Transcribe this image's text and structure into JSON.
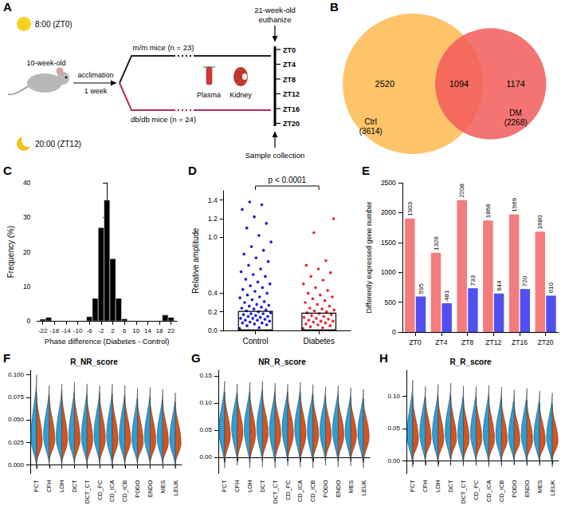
{
  "panel_letters": [
    "A",
    "B",
    "C",
    "D",
    "E",
    "F",
    "G",
    "H"
  ],
  "diagram": {
    "day": "8:00 (ZT0)",
    "night": "20:00 (ZT12)",
    "start_age": "10-week-old",
    "acclimation": "acclimation",
    "acclimation_time": "1 week",
    "groups": [
      "m/m mice (n = 23)",
      "db/db mice (n = 24)"
    ],
    "end_age": "21-week-old",
    "end_action": "euthanize",
    "samples": [
      "Plasma",
      "Kidney"
    ],
    "timepoints": [
      "ZT0",
      "ZT4",
      "ZT8",
      "ZT12",
      "ZT16",
      "ZT20"
    ],
    "collection": "Sample collection"
  },
  "venn": {
    "sets": [
      {
        "name": "Ctrl",
        "size": 3614,
        "size_label": "(3614)",
        "color": "#fdc46a"
      },
      {
        "name": "DM",
        "size": 2268,
        "size_label": "(2268)",
        "color": "#f25c5c"
      }
    ],
    "only": [
      2520,
      1174
    ],
    "both": 1094
  },
  "chart_data": [
    {
      "type": "histogram",
      "bins": [
        -23,
        -21,
        -19,
        -17,
        -15,
        -13,
        -11,
        -9,
        -7,
        -5,
        -3,
        -1,
        1,
        3,
        5,
        7,
        9,
        11,
        13,
        15,
        17,
        19,
        21,
        23
      ],
      "counts": [
        0.5,
        1,
        0,
        0,
        0,
        0,
        0,
        0,
        1.2,
        6.5,
        27,
        35,
        18,
        6.5,
        0.6,
        0,
        0,
        0,
        0,
        0,
        0,
        1.7,
        1
      ],
      "color": "#000000",
      "xlabel": "Phase difference (Diabetes - Control)",
      "ylabel": "Frequency (%)",
      "xlim": [
        -24,
        24
      ],
      "xticks": [
        -22,
        -18,
        -14,
        -10,
        -6,
        -2,
        2,
        6,
        10,
        14,
        18,
        22
      ],
      "ylim": [
        0,
        40
      ],
      "yticks": [
        0,
        10,
        20,
        30,
        40
      ]
    },
    {
      "type": "bar_dot",
      "categories": [
        "Control",
        "Diabetes"
      ],
      "colors": [
        "#1a1adb",
        "#e8282b"
      ],
      "values": [
        0.21,
        0.19
      ],
      "points": [
        [
          0.02,
          0.03,
          0.05,
          0.06,
          0.07,
          0.08,
          0.08,
          0.09,
          0.1,
          0.11,
          0.11,
          0.12,
          0.13,
          0.13,
          0.14,
          0.15,
          0.15,
          0.16,
          0.17,
          0.18,
          0.18,
          0.19,
          0.2,
          0.21,
          0.22,
          0.23,
          0.24,
          0.25,
          0.26,
          0.27,
          0.28,
          0.3,
          0.31,
          0.33,
          0.35,
          0.36,
          0.38,
          0.4,
          0.42,
          0.44,
          0.46,
          0.48,
          0.5,
          0.52,
          0.55,
          0.58,
          0.6,
          0.63,
          0.66,
          0.7,
          0.74,
          0.78,
          0.82,
          0.86,
          0.9,
          0.95,
          1.02,
          1.1,
          1.15,
          1.22,
          1.3,
          1.35,
          1.38
        ],
        [
          0.02,
          0.03,
          0.04,
          0.05,
          0.06,
          0.07,
          0.08,
          0.09,
          0.1,
          0.1,
          0.11,
          0.12,
          0.13,
          0.14,
          0.15,
          0.16,
          0.17,
          0.18,
          0.19,
          0.2,
          0.21,
          0.22,
          0.23,
          0.24,
          0.26,
          0.28,
          0.3,
          0.32,
          0.34,
          0.36,
          0.38,
          0.4,
          0.43,
          0.46,
          0.5,
          0.54,
          0.58,
          0.62,
          0.66,
          0.7,
          0.75,
          1.05,
          1.2
        ]
      ],
      "ylabel": "Relative amplitude",
      "annotation": "p < 0.0001",
      "ylim": [
        0,
        1.5
      ],
      "yticks": [
        {
          "value": 0,
          "label": "0.0"
        },
        0.2,
        0.4,
        {
          "value": 1,
          "label": "1.0"
        },
        1.2,
        1.4
      ]
    },
    {
      "type": "bar",
      "categories": [
        "ZT0",
        "ZT4",
        "ZT8",
        "ZT12",
        "ZT16",
        "ZT20"
      ],
      "series": [
        {
          "color": "#f47c7c",
          "values": [
            1903,
            1326,
            2208,
            1868,
            1969,
            1680
          ]
        },
        {
          "color": "#5050f0",
          "values": [
            595,
            481,
            733,
            644,
            720,
            610
          ]
        }
      ],
      "ylabel": "Differently expressed gene number",
      "ylim": [
        0,
        2500
      ],
      "yticks": [
        0,
        500,
        1000,
        1500,
        2000,
        2500
      ],
      "data_labels": true
    },
    {
      "type": "violin",
      "title": "R_NR_score",
      "categories": [
        "PCT",
        "CFH",
        "LOH",
        "DCT",
        "DCT_CT",
        "CD_PC",
        "CD_ICA",
        "CD_ICB",
        "PODO",
        "ENDO",
        "MES",
        "LEUK"
      ],
      "series": [
        {
          "color": "#2b9fd8",
          "min": [
            -0.005,
            -0.002,
            -0.003,
            -0.002,
            -0.003,
            -0.002,
            -0.004,
            -0.003,
            -0.002,
            -0.003,
            -0.002,
            -0.004
          ],
          "peak": [
            0.03,
            0.032,
            0.03,
            0.031,
            0.03,
            0.032,
            0.031,
            0.03,
            0.028,
            0.03,
            0.029,
            0.028
          ],
          "max": [
            0.1,
            0.088,
            0.09,
            0.092,
            0.09,
            0.088,
            0.09,
            0.088,
            0.085,
            0.086,
            0.084,
            0.08
          ]
        },
        {
          "color": "#d4541f",
          "min": [
            0,
            0.002,
            0,
            0.001,
            0,
            0.001,
            0,
            0.001,
            0.002,
            0,
            0.001,
            0
          ],
          "peak": [
            0.026,
            0.028,
            0.027,
            0.028,
            0.027,
            0.028,
            0.027,
            0.027,
            0.025,
            0.026,
            0.025,
            0.024
          ],
          "max": [
            0.08,
            0.078,
            0.082,
            0.08,
            0.078,
            0.08,
            0.079,
            0.077,
            0.074,
            0.075,
            0.072,
            0.07
          ]
        }
      ],
      "ylim": [
        -0.01,
        0.105
      ],
      "yticks": [
        {
          "value": 0,
          "label": "0.000"
        },
        0.025,
        {
          "value": 0.05,
          "label": "0.050"
        },
        0.075,
        {
          "value": 0.1,
          "label": "0.100"
        }
      ]
    },
    {
      "type": "violin",
      "title": "NR_R_score",
      "categories": [
        "PCT",
        "CFH",
        "LOH",
        "DCT",
        "DCT_CT",
        "CD_PC",
        "CD_ICA",
        "CD_ICB",
        "PODO",
        "ENDO",
        "MES",
        "LEUK"
      ],
      "series": [
        {
          "color": "#2b9fd8",
          "min": [
            -0.02,
            -0.015,
            -0.02,
            -0.018,
            -0.02,
            -0.016,
            -0.018,
            -0.02,
            -0.015,
            -0.018,
            -0.016,
            -0.02
          ],
          "peak": [
            0.05,
            0.055,
            0.052,
            0.054,
            0.05,
            0.053,
            0.052,
            0.05,
            0.048,
            0.05,
            0.047,
            0.045
          ],
          "max": [
            0.14,
            0.135,
            0.138,
            0.14,
            0.136,
            0.135,
            0.138,
            0.134,
            0.13,
            0.132,
            0.128,
            0.125
          ]
        },
        {
          "color": "#d4541f",
          "min": [
            -0.01,
            -0.008,
            -0.01,
            -0.006,
            -0.008,
            -0.007,
            -0.01,
            -0.008,
            -0.006,
            -0.008,
            -0.007,
            -0.01
          ],
          "peak": [
            0.04,
            0.045,
            0.042,
            0.044,
            0.042,
            0.043,
            0.042,
            0.04,
            0.04,
            0.041,
            0.039,
            0.038
          ],
          "max": [
            0.12,
            0.118,
            0.12,
            0.122,
            0.118,
            0.12,
            0.12,
            0.116,
            0.112,
            0.114,
            0.11,
            0.108
          ]
        }
      ],
      "ylim": [
        -0.03,
        0.16
      ],
      "yticks": [
        {
          "value": 0,
          "label": "0.00"
        },
        0.05,
        {
          "value": 0.1,
          "label": "0.10"
        },
        0.15
      ]
    },
    {
      "type": "violin",
      "title": "R_R_score",
      "categories": [
        "PCT",
        "CFH",
        "LOH",
        "DCT",
        "DCT_CT",
        "CD_PC",
        "CD_ICA",
        "CD_ICB",
        "PODO",
        "ENDO",
        "MES",
        "LEUK"
      ],
      "series": [
        {
          "color": "#2b9fd8",
          "min": [
            -0.01,
            -0.008,
            -0.01,
            -0.008,
            -0.009,
            -0.008,
            -0.01,
            -0.009,
            -0.007,
            -0.008,
            -0.008,
            -0.01
          ],
          "peak": [
            0.04,
            0.042,
            0.041,
            0.043,
            0.04,
            0.042,
            0.041,
            0.04,
            0.038,
            0.04,
            0.037,
            0.036
          ],
          "max": [
            0.125,
            0.115,
            0.118,
            0.12,
            0.116,
            0.115,
            0.117,
            0.114,
            0.11,
            0.112,
            0.108,
            0.105
          ]
        },
        {
          "color": "#d4541f",
          "min": [
            0,
            0.002,
            0,
            0.001,
            0,
            0.001,
            0,
            0.001,
            0.002,
            0,
            0.001,
            0
          ],
          "peak": [
            0.032,
            0.034,
            0.033,
            0.034,
            0.033,
            0.034,
            0.033,
            0.032,
            0.031,
            0.032,
            0.03,
            0.03
          ],
          "max": [
            0.1,
            0.098,
            0.1,
            0.1,
            0.097,
            0.098,
            0.099,
            0.096,
            0.092,
            0.094,
            0.09,
            0.088
          ]
        }
      ],
      "ylim": [
        -0.02,
        0.14
      ],
      "yticks": [
        {
          "value": 0,
          "label": "0.00"
        },
        0.05,
        {
          "value": 0.1,
          "label": "0.10"
        }
      ]
    }
  ]
}
